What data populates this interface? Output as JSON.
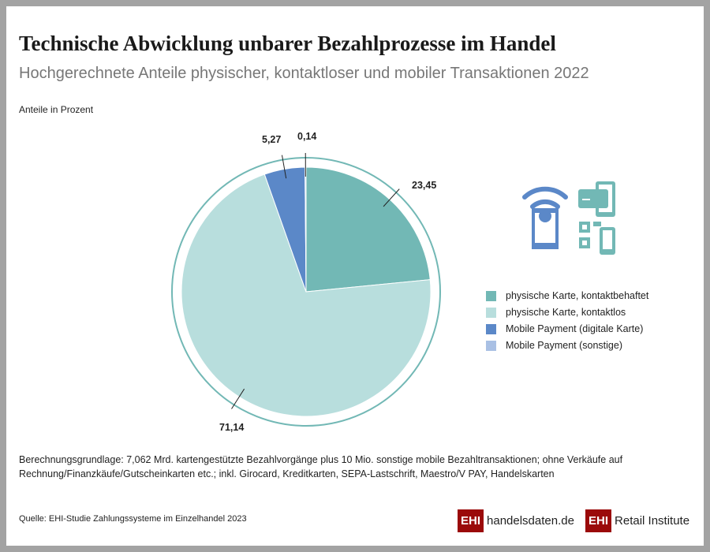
{
  "title": "Technische Abwicklung unbarer Bezahlprozesse im Handel",
  "subtitle": "Hochgerechnete Anteile physischer, kontaktloser und mobiler Transaktionen 2022",
  "chart_data": {
    "type": "pie",
    "ylabel": "Anteile in Prozent",
    "categories": [
      "physische Karte, kontaktbehaftet",
      "physische Karte, kontaktlos",
      "Mobile Payment (digitale Karte)",
      "Mobile Payment (sonstige)"
    ],
    "values": [
      23.45,
      71.14,
      5.27,
      0.14
    ],
    "labels": [
      "23,45",
      "71,14",
      "5,27",
      "0,14"
    ],
    "colors": [
      "#72b8b5",
      "#b8dedd",
      "#5b88c8",
      "#a9c0e4"
    ],
    "start": "12 o'clock, clockwise",
    "legend": "right"
  },
  "note": "Berechnungsgrundlage: 7,062 Mrd. kartengestützte Bezahlvorgänge plus 10 Mio. sonstige mobile Bezahltransaktionen; ohne Verkäufe auf Rechnung/Finanzkäufe/Gutscheinkarten etc.; inkl. Girocard, Kreditkarten, SEPA-Lastschrift, Maestro/V PAY, Handelskarten",
  "source": "Quelle: EHI-Studie Zahlungssysteme im Einzelhandel 2023",
  "logos": {
    "l1_badge": "EHI",
    "l1_text": "handelsdaten.de",
    "l2_badge": "EHI",
    "l2_text": "Retail Institute"
  },
  "icons": [
    "nfc-phone-icon",
    "card-phone-icon",
    "qr-phone-icon"
  ]
}
